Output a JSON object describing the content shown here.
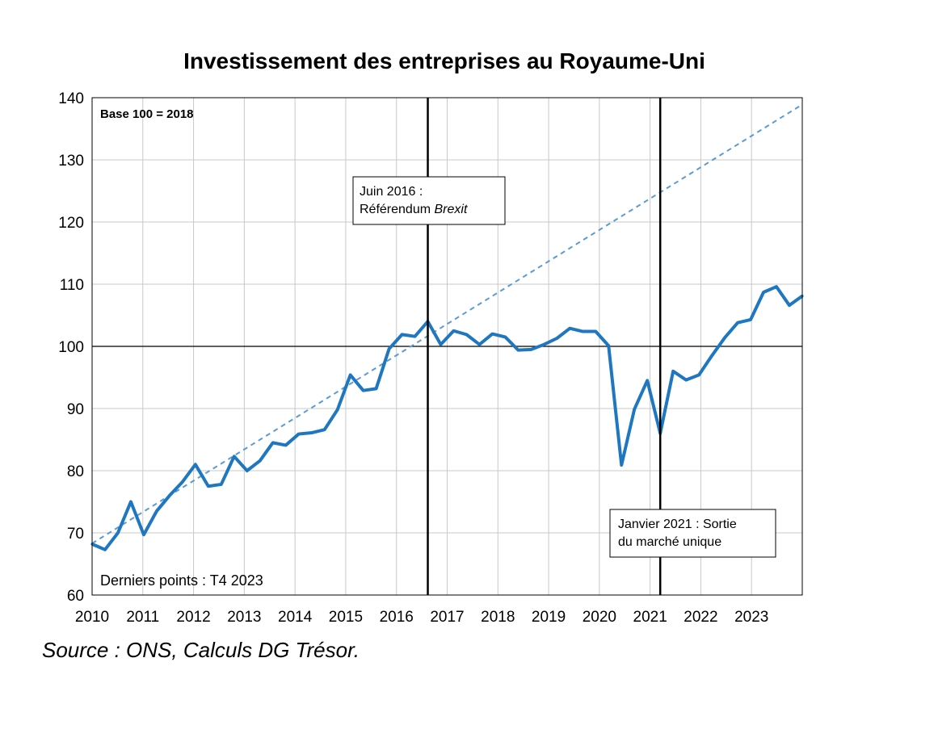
{
  "chart_data": {
    "type": "line",
    "title": "Investissement des entreprises au Royaume-Uni",
    "base_note": "Base 100 = 2018",
    "last_points_note": "Derniers points : T4 2023",
    "xlabel": "",
    "ylabel": "",
    "ylim": [
      60,
      140
    ],
    "xlim": [
      2010,
      2023.75
    ],
    "y_ticks": [
      60,
      70,
      80,
      90,
      100,
      110,
      120,
      130,
      140
    ],
    "x_ticks": [
      "2010",
      "2011",
      "2012",
      "2013",
      "2014",
      "2015",
      "2016",
      "2017",
      "2018",
      "2019",
      "2020",
      "2021",
      "2022",
      "2023"
    ],
    "grid": true,
    "reference_line_y": 100,
    "series": [
      {
        "color": "#1f77c0",
        "style": "solid",
        "x": [
          2010.0,
          2010.25,
          2010.5,
          2010.75,
          2011.0,
          2011.25,
          2011.5,
          2011.75,
          2012.0,
          2012.25,
          2012.5,
          2012.75,
          2013.0,
          2013.25,
          2013.5,
          2013.75,
          2014.0,
          2014.25,
          2014.5,
          2014.75,
          2015.0,
          2015.25,
          2015.5,
          2015.75,
          2016.0,
          2016.25,
          2016.5,
          2016.75,
          2017.0,
          2017.25,
          2017.5,
          2017.75,
          2018.0,
          2018.25,
          2018.5,
          2018.75,
          2019.0,
          2019.25,
          2019.5,
          2019.75,
          2020.0,
          2020.25,
          2020.5,
          2020.75,
          2021.0,
          2021.25,
          2021.5,
          2021.75,
          2022.0,
          2022.25,
          2022.5,
          2022.75,
          2023.0,
          2023.25,
          2023.5,
          2023.75
        ],
        "values": [
          68.2,
          67.3,
          70.0,
          75.0,
          69.7,
          73.5,
          76.0,
          78.2,
          81.0,
          77.5,
          77.8,
          82.3,
          80.0,
          81.6,
          84.5,
          84.1,
          85.9,
          86.1,
          86.6,
          89.8,
          95.4,
          92.9,
          93.2,
          99.6,
          101.9,
          101.6,
          104.0,
          100.3,
          102.5,
          101.9,
          100.3,
          102.0,
          101.5,
          99.4,
          99.5,
          100.3,
          101.3,
          102.9,
          102.4,
          102.4,
          100.1,
          80.9,
          89.9,
          94.5,
          86.0,
          96.0,
          94.6,
          95.4,
          98.5,
          101.4,
          103.8,
          104.3,
          108.7,
          109.6,
          106.6,
          108.1
        ]
      },
      {
        "color": "#5b9bd5",
        "style": "dashed",
        "x": [
          2010.0,
          2023.75
        ],
        "values": [
          68.3,
          138.9
        ]
      }
    ],
    "annotations": [
      {
        "x": 2016.5,
        "line1": "Juin 2016 :",
        "line2_prefix": "Référendum ",
        "line2_italic": "Brexit"
      },
      {
        "x": 2021.0,
        "line1": "Janvier 2021 : Sortie",
        "line2": "du marché unique"
      }
    ]
  },
  "source": "Source : ONS, Calculs DG Trésor."
}
